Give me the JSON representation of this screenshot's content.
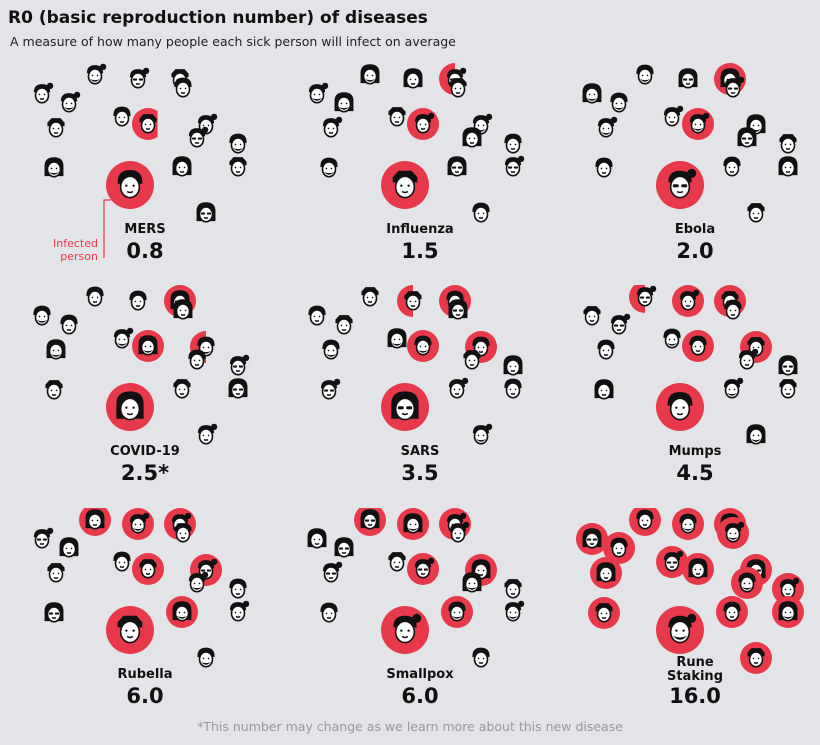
{
  "title": "R0 (basic reproduction number) of diseases",
  "subtitle": "A measure of how many people each sick person will infect on average",
  "callout_label": "Infected\nperson",
  "footnote": "*This number may change as we learn more about this new disease",
  "colors": {
    "background": "#e2e4e7",
    "infected": "#e8394a",
    "face": "#ffffff",
    "ink": "#111111",
    "footnote": "#9a9a9a"
  },
  "chart_data": {
    "type": "pictogram",
    "unit": "people infected on average by one sick person",
    "categories": [
      "MERS",
      "Influenza",
      "Ebola",
      "COVID-19",
      "SARS",
      "Mumps",
      "Rubella",
      "Smallpox",
      "Rune Staking"
    ],
    "values": [
      0.8,
      1.5,
      2.0,
      2.5,
      3.5,
      4.5,
      6.0,
      6.0,
      16.0
    ],
    "value_labels": [
      "0.8",
      "1.5",
      "2.0",
      "2.5*",
      "3.5",
      "4.5",
      "6.0",
      "6.0",
      "16.0"
    ],
    "name_labels": [
      "MERS",
      "Influenza",
      "Ebola",
      "COVID-19",
      "SARS",
      "Mumps",
      "Rubella",
      "Smallpox",
      "Rune\nStaking"
    ],
    "people_per_panel": 17
  }
}
